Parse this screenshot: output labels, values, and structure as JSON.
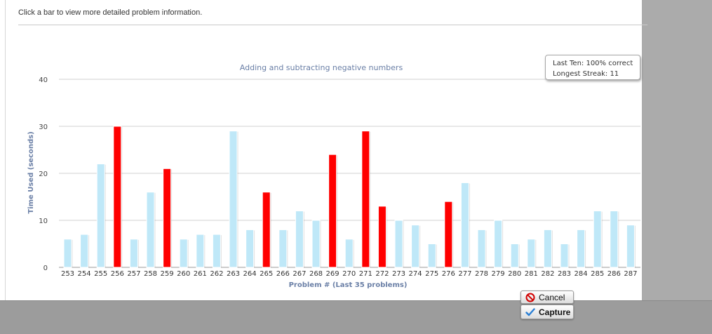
{
  "instruction": "Click a bar to view more detailed problem information.",
  "tooltip": {
    "last_ten": "Last Ten: 100% correct",
    "longest_streak": "Longest Streak: 11"
  },
  "buttons": {
    "cancel": "Cancel",
    "capture": "Capture"
  },
  "colors": {
    "correct": "#bfe8f8",
    "incorrect": "#ff0000",
    "title": "#6a7fa6",
    "axis_label": "#6a7fa6"
  },
  "chart_data": {
    "type": "bar",
    "title": "Adding and subtracting negative numbers",
    "xlabel": "Problem # (Last 35 problems)",
    "ylabel": "Time Used (seconds)",
    "ylim": [
      0,
      40
    ],
    "yticks": [
      0,
      10,
      20,
      30,
      40
    ],
    "grid": true,
    "categories": [
      "253",
      "254",
      "255",
      "256",
      "257",
      "258",
      "259",
      "260",
      "261",
      "262",
      "263",
      "264",
      "265",
      "266",
      "267",
      "268",
      "269",
      "270",
      "271",
      "272",
      "273",
      "274",
      "275",
      "276",
      "277",
      "278",
      "279",
      "280",
      "281",
      "282",
      "283",
      "284",
      "285",
      "286",
      "287"
    ],
    "values": [
      6,
      7,
      22,
      30,
      6,
      16,
      21,
      6,
      7,
      7,
      29,
      8,
      16,
      8,
      12,
      10,
      24,
      6,
      29,
      13,
      10,
      9,
      5,
      14,
      18,
      8,
      10,
      5,
      6,
      8,
      5,
      8,
      12,
      12,
      9
    ],
    "incorrect": [
      false,
      false,
      false,
      true,
      false,
      false,
      true,
      false,
      false,
      false,
      false,
      false,
      true,
      false,
      false,
      false,
      true,
      false,
      true,
      true,
      false,
      false,
      false,
      true,
      false,
      false,
      false,
      false,
      false,
      false,
      false,
      false,
      false,
      false,
      false
    ]
  }
}
